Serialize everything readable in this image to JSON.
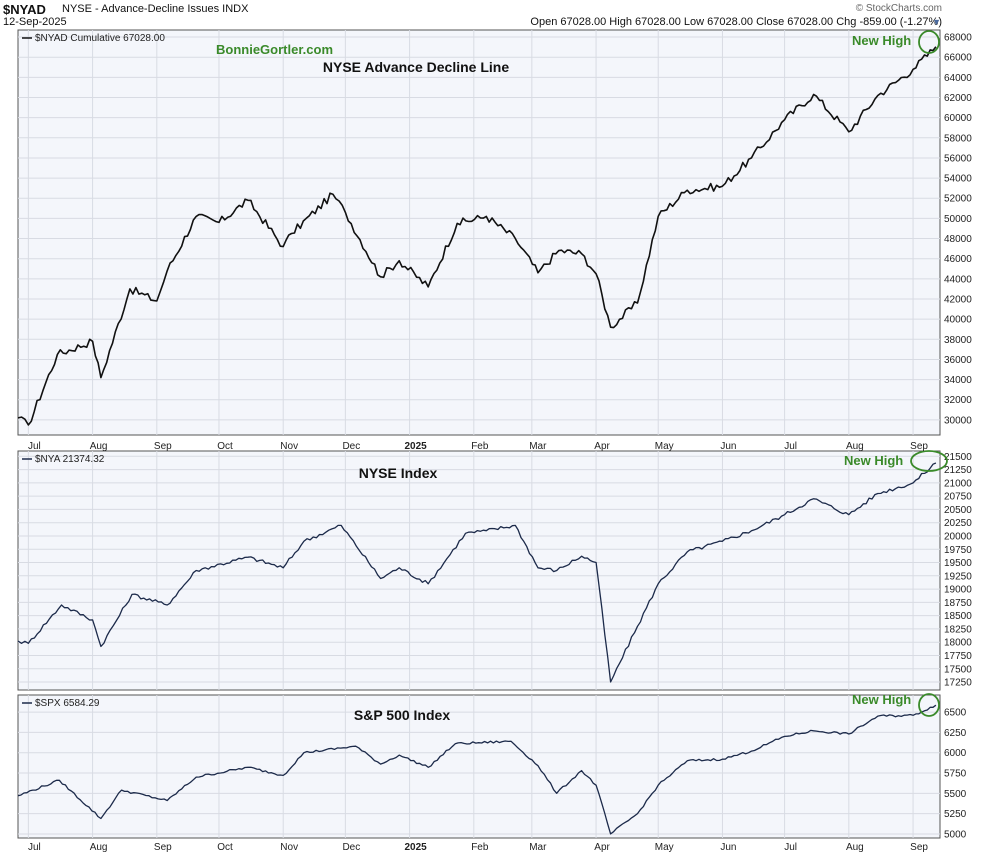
{
  "header": {
    "symbol": "$NYAD",
    "name": "NYSE - Advance-Decline Issues  INDX",
    "date": "12-Sep-2025",
    "brand": "© StockCharts.com",
    "ohlc": "Open 67028.00   High 67028.00   Low 67028.00   Close 67028.00   Chg -859.00 (-1.27%)"
  },
  "chart_data": [
    {
      "type": "line",
      "title": "NYSE Advance Decline Line",
      "watermark": "BonnieGortler.com",
      "legend": "$NYAD Cumulative 67028.00",
      "annotation": "New High",
      "ylim": [
        28500,
        68700
      ],
      "yticks": [
        30000,
        32000,
        34000,
        36000,
        38000,
        40000,
        42000,
        44000,
        46000,
        48000,
        50000,
        52000,
        54000,
        56000,
        58000,
        60000,
        62000,
        64000,
        66000,
        68000
      ],
      "x_dates": [
        "2024-06-26",
        "2024-07-01",
        "2024-07-15",
        "2024-08-01",
        "2024-08-05",
        "2024-08-19",
        "2024-09-01",
        "2024-09-06",
        "2024-09-20",
        "2024-10-01",
        "2024-10-15",
        "2024-11-01",
        "2024-11-05",
        "2024-11-25",
        "2024-12-01",
        "2024-12-18",
        "2024-12-27",
        "2025-01-10",
        "2025-01-24",
        "2025-02-07",
        "2025-02-21",
        "2025-03-04",
        "2025-03-14",
        "2025-03-25",
        "2025-04-01",
        "2025-04-08",
        "2025-04-21",
        "2025-05-01",
        "2025-05-15",
        "2025-06-01",
        "2025-06-15",
        "2025-07-01",
        "2025-07-15",
        "2025-08-01",
        "2025-08-15",
        "2025-09-01",
        "2025-09-12"
      ],
      "values": [
        30200,
        29500,
        36500,
        37800,
        34200,
        43000,
        41800,
        44800,
        50200,
        49600,
        51800,
        47200,
        48500,
        52400,
        50600,
        44200,
        45800,
        43200,
        49500,
        50200,
        48000,
        44600,
        46800,
        46500,
        44500,
        39200,
        41600,
        50200,
        52800,
        53200,
        56000,
        59800,
        62300,
        58600,
        62200,
        64800,
        67028
      ]
    },
    {
      "type": "line",
      "title": "NYSE Index",
      "legend": "$NYA 21374.32",
      "annotation": "New High",
      "ylim": [
        17100,
        21600
      ],
      "yticks": [
        17250,
        17500,
        17750,
        18000,
        18250,
        18500,
        18750,
        19000,
        19250,
        19500,
        19750,
        20000,
        20250,
        20500,
        20750,
        21000,
        21250,
        21500
      ],
      "x_dates": [
        "2024-06-26",
        "2024-07-01",
        "2024-07-17",
        "2024-08-01",
        "2024-08-05",
        "2024-08-20",
        "2024-09-06",
        "2024-09-20",
        "2024-10-15",
        "2024-11-01",
        "2024-11-11",
        "2024-11-29",
        "2024-12-18",
        "2024-12-27",
        "2025-01-10",
        "2025-01-28",
        "2025-02-07",
        "2025-02-21",
        "2025-03-04",
        "2025-03-13",
        "2025-03-25",
        "2025-04-01",
        "2025-04-08",
        "2025-04-21",
        "2025-05-01",
        "2025-05-15",
        "2025-06-01",
        "2025-06-15",
        "2025-07-01",
        "2025-07-15",
        "2025-08-01",
        "2025-08-15",
        "2025-09-01",
        "2025-09-12"
      ],
      "values": [
        18020,
        17980,
        18700,
        18420,
        17920,
        18900,
        18700,
        19350,
        19600,
        19400,
        19900,
        20200,
        19200,
        19400,
        19100,
        20050,
        20100,
        20200,
        19400,
        19350,
        19620,
        19500,
        17250,
        18300,
        19100,
        19700,
        19900,
        20100,
        20400,
        20700,
        20400,
        20800,
        21000,
        21374
      ]
    },
    {
      "type": "line",
      "title": "S&P 500 Index",
      "legend": "$SPX 6584.29",
      "annotation": "New High",
      "ylim": [
        4950,
        6710
      ],
      "yticks": [
        5000,
        5250,
        5500,
        5750,
        6000,
        6250,
        6500
      ],
      "x_dates": [
        "2024-06-26",
        "2024-07-16",
        "2024-08-05",
        "2024-08-15",
        "2024-09-06",
        "2024-09-20",
        "2024-10-15",
        "2024-11-01",
        "2024-11-11",
        "2024-12-06",
        "2024-12-18",
        "2024-12-27",
        "2025-01-10",
        "2025-01-23",
        "2025-02-19",
        "2025-03-04",
        "2025-03-13",
        "2025-03-25",
        "2025-04-01",
        "2025-04-08",
        "2025-04-21",
        "2025-05-01",
        "2025-05-15",
        "2025-06-01",
        "2025-06-15",
        "2025-07-01",
        "2025-07-15",
        "2025-08-01",
        "2025-08-15",
        "2025-09-01",
        "2025-09-12"
      ],
      "values": [
        5470,
        5660,
        5190,
        5540,
        5410,
        5700,
        5820,
        5720,
        6000,
        6080,
        5860,
        5970,
        5820,
        6110,
        6140,
        5840,
        5500,
        5780,
        5600,
        5000,
        5250,
        5600,
        5900,
        5920,
        6020,
        6200,
        6270,
        6230,
        6450,
        6460,
        6584
      ]
    }
  ],
  "x_axis": {
    "ticks": [
      {
        "date": "2024-07-01",
        "label": "Jul",
        "bold": false
      },
      {
        "date": "2024-08-01",
        "label": "Aug",
        "bold": false
      },
      {
        "date": "2024-09-01",
        "label": "Sep",
        "bold": false
      },
      {
        "date": "2024-10-01",
        "label": "Oct",
        "bold": false
      },
      {
        "date": "2024-11-01",
        "label": "Nov",
        "bold": false
      },
      {
        "date": "2024-12-01",
        "label": "Dec",
        "bold": false
      },
      {
        "date": "2025-01-01",
        "label": "2025",
        "bold": true
      },
      {
        "date": "2025-02-01",
        "label": "Feb",
        "bold": false
      },
      {
        "date": "2025-03-01",
        "label": "Mar",
        "bold": false
      },
      {
        "date": "2025-04-01",
        "label": "Apr",
        "bold": false
      },
      {
        "date": "2025-05-01",
        "label": "May",
        "bold": false
      },
      {
        "date": "2025-06-01",
        "label": "Jun",
        "bold": false
      },
      {
        "date": "2025-07-01",
        "label": "Jul",
        "bold": false
      },
      {
        "date": "2025-08-01",
        "label": "Aug",
        "bold": false
      },
      {
        "date": "2025-09-01",
        "label": "Sep",
        "bold": false
      }
    ]
  },
  "colors": {
    "line_primary": "#111111",
    "line_secondary": "#1c2a4a",
    "annotation": "#3a8a2a",
    "plot_background": "#f4f6fb"
  }
}
